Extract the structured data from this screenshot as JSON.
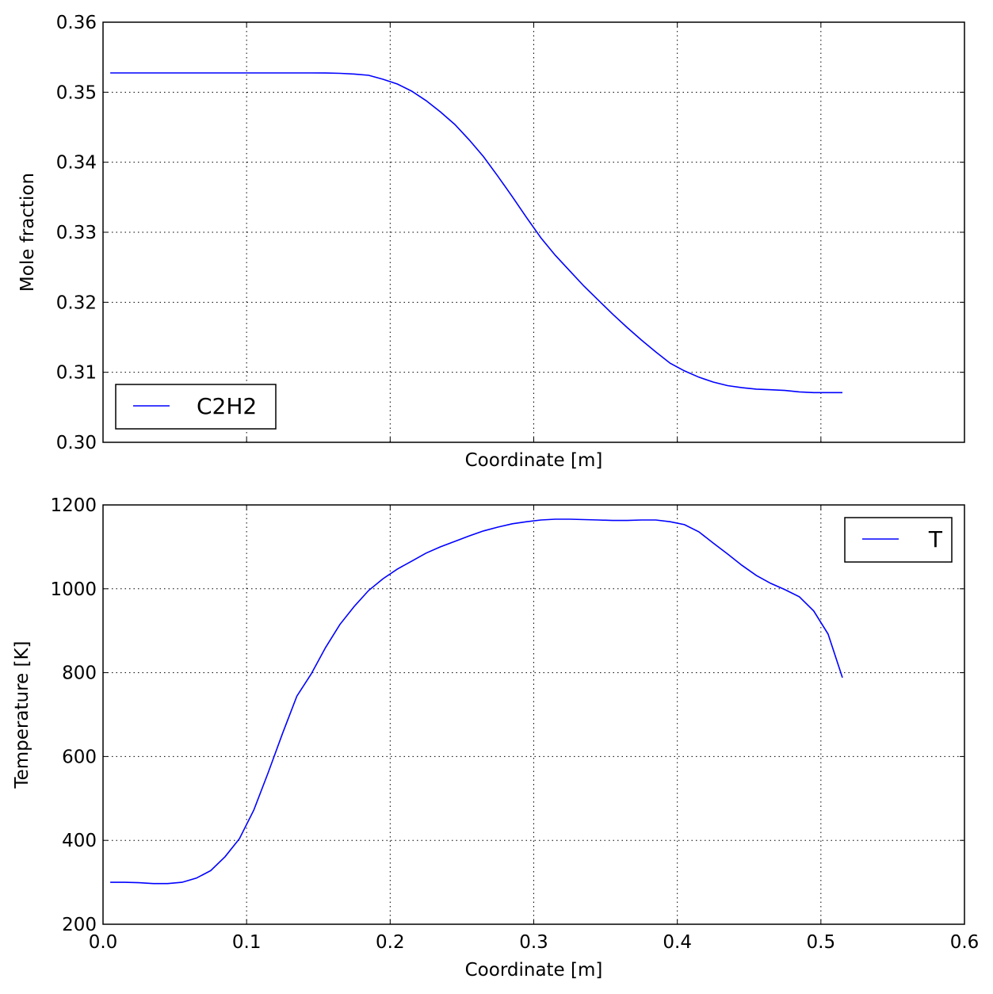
{
  "chart_data": [
    {
      "type": "line",
      "title": "",
      "xlabel": "Coordinate [m]",
      "ylabel": "Mole fraction",
      "xlim": [
        0,
        0.6
      ],
      "ylim": [
        0.3,
        0.36
      ],
      "grid": true,
      "legend_position": "lower-left",
      "xticks": [
        0.0,
        0.1,
        0.2,
        0.3,
        0.4,
        0.5,
        0.6
      ],
      "xtick_labels_visible": false,
      "yticks": [
        0.3,
        0.31,
        0.32,
        0.33,
        0.34,
        0.35,
        0.36
      ],
      "ytick_labels": [
        "0.30",
        "0.31",
        "0.32",
        "0.33",
        "0.34",
        "0.35",
        "0.36"
      ],
      "series": [
        {
          "name": "C2H2",
          "color": "#0000ff",
          "x": [
            0.005,
            0.015,
            0.025,
            0.035,
            0.045,
            0.055,
            0.065,
            0.075,
            0.085,
            0.095,
            0.105,
            0.115,
            0.125,
            0.135,
            0.145,
            0.155,
            0.165,
            0.175,
            0.185,
            0.195,
            0.205,
            0.215,
            0.225,
            0.235,
            0.245,
            0.255,
            0.265,
            0.275,
            0.285,
            0.295,
            0.305,
            0.315,
            0.325,
            0.335,
            0.345,
            0.355,
            0.365,
            0.375,
            0.385,
            0.395,
            0.405,
            0.415,
            0.425,
            0.435,
            0.445,
            0.455,
            0.465,
            0.475,
            0.485,
            0.495,
            0.505,
            0.515
          ],
          "y": [
            0.35275,
            0.35275,
            0.35275,
            0.35275,
            0.35275,
            0.35275,
            0.35275,
            0.35275,
            0.35275,
            0.35275,
            0.35275,
            0.35275,
            0.35275,
            0.35275,
            0.35275,
            0.35274,
            0.3527,
            0.3526,
            0.35242,
            0.35185,
            0.35117,
            0.35015,
            0.3488,
            0.3472,
            0.3454,
            0.3432,
            0.3408,
            0.338,
            0.3351,
            0.3321,
            0.3292,
            0.3267,
            0.3245,
            0.3223,
            0.3203,
            0.3183,
            0.3164,
            0.3146,
            0.3129,
            0.3113,
            0.3102,
            0.3093,
            0.3086,
            0.3081,
            0.3078,
            0.3076,
            0.3075,
            0.3074,
            0.3072,
            0.3071,
            0.3071,
            0.3071
          ]
        }
      ]
    },
    {
      "type": "line",
      "title": "",
      "xlabel": "Coordinate [m]",
      "ylabel": "Temperature [K]",
      "xlim": [
        0,
        0.6
      ],
      "ylim": [
        200,
        1200
      ],
      "grid": true,
      "legend_position": "upper-right",
      "xticks": [
        0.0,
        0.1,
        0.2,
        0.3,
        0.4,
        0.5,
        0.6
      ],
      "xtick_labels": [
        "0.0",
        "0.1",
        "0.2",
        "0.3",
        "0.4",
        "0.5",
        "0.6"
      ],
      "yticks": [
        200,
        400,
        600,
        800,
        1000,
        1200
      ],
      "ytick_labels": [
        "200",
        "400",
        "600",
        "800",
        "1000",
        "1200"
      ],
      "series": [
        {
          "name": "T",
          "color": "#0000ff",
          "x": [
            0.005,
            0.015,
            0.025,
            0.035,
            0.045,
            0.055,
            0.065,
            0.075,
            0.085,
            0.095,
            0.105,
            0.115,
            0.125,
            0.135,
            0.145,
            0.155,
            0.165,
            0.175,
            0.185,
            0.195,
            0.205,
            0.215,
            0.225,
            0.235,
            0.245,
            0.255,
            0.265,
            0.275,
            0.285,
            0.295,
            0.305,
            0.315,
            0.325,
            0.335,
            0.345,
            0.355,
            0.365,
            0.375,
            0.385,
            0.395,
            0.405,
            0.415,
            0.425,
            0.435,
            0.445,
            0.455,
            0.465,
            0.475,
            0.485,
            0.495,
            0.505,
            0.515
          ],
          "y": [
            300,
            300,
            299,
            297,
            297,
            300,
            310,
            328,
            361,
            404,
            472,
            561,
            655,
            744,
            797,
            860,
            915,
            958,
            996,
            1024,
            1047,
            1066,
            1085,
            1100,
            1113,
            1126,
            1138,
            1147,
            1155,
            1160,
            1164,
            1166,
            1166,
            1165,
            1164,
            1163,
            1163,
            1164,
            1164,
            1160,
            1153,
            1136,
            1109,
            1083,
            1056,
            1032,
            1013,
            998,
            981,
            947,
            892,
            788
          ]
        }
      ]
    }
  ]
}
